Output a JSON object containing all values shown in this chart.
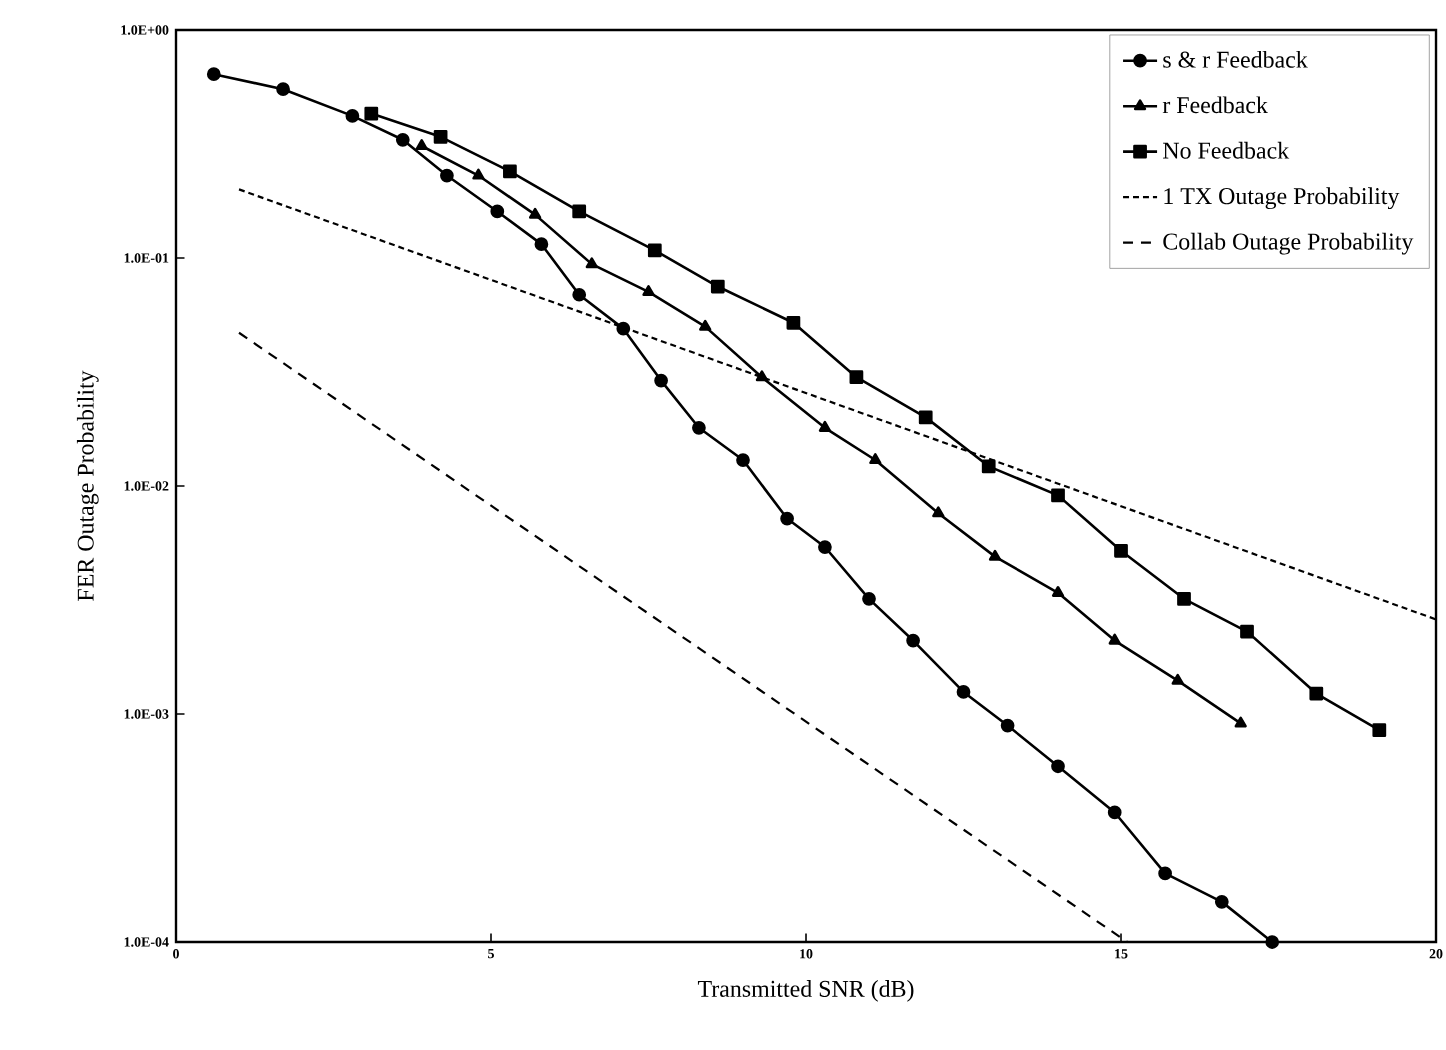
{
  "chart_data": {
    "type": "line",
    "xlabel": "Transmitted SNR (dB)",
    "ylabel": "FER  Outage Probability",
    "log": "y",
    "legend": "top right",
    "xlim": [
      0,
      20
    ],
    "xticks": [
      0,
      5,
      10,
      15,
      20
    ],
    "ylim": [
      0.0001,
      1
    ],
    "yticks": [
      {
        "value": 0.0001,
        "label": "1.0E-04"
      },
      {
        "value": 0.001,
        "label": "1.0E-03"
      },
      {
        "value": 0.01,
        "label": "1.0E-02"
      },
      {
        "value": 0.1,
        "label": "1.0E-01"
      },
      {
        "value": 1,
        "label": "1.0E+00"
      }
    ],
    "series": [
      {
        "name": "s & r Feedback",
        "color": "#000000",
        "marker": "circle",
        "line_style": "solid",
        "x": [
          0.6,
          1.7,
          2.8,
          3.6,
          4.3,
          5.1,
          5.8,
          6.4,
          7.1,
          7.7,
          8.3,
          9.0,
          9.7,
          10.3,
          11.0,
          11.7,
          12.5,
          13.2,
          14.0,
          14.9,
          15.7,
          16.6,
          17.4
        ],
        "values": [
          0.64,
          0.55,
          0.42,
          0.33,
          0.23,
          0.16,
          0.115,
          0.069,
          0.049,
          0.029,
          0.018,
          0.013,
          0.0072,
          0.0054,
          0.0032,
          0.0021,
          0.00125,
          0.00089,
          0.00059,
          0.00037,
          0.0002,
          0.00015,
          0.0001
        ]
      },
      {
        "name": "r Feedback",
        "color": "#000000",
        "marker": "triangle",
        "line_style": "solid",
        "x": [
          3.9,
          4.8,
          5.7,
          6.6,
          7.5,
          8.4,
          9.3,
          10.3,
          11.1,
          12.1,
          13.0,
          14.0,
          14.9,
          15.9,
          16.9
        ],
        "values": [
          0.31,
          0.23,
          0.155,
          0.094,
          0.071,
          0.05,
          0.03,
          0.018,
          0.013,
          0.0076,
          0.0049,
          0.0034,
          0.0021,
          0.0014,
          0.00091
        ]
      },
      {
        "name": "No Feedback",
        "color": "#000000",
        "marker": "square",
        "line_style": "solid",
        "x": [
          3.1,
          4.2,
          5.3,
          6.4,
          7.6,
          8.6,
          9.8,
          10.8,
          11.9,
          12.9,
          14.0,
          15.0,
          16.0,
          17.0,
          18.1,
          19.1
        ],
        "values": [
          0.43,
          0.34,
          0.24,
          0.16,
          0.108,
          0.075,
          0.052,
          0.03,
          0.02,
          0.0122,
          0.0091,
          0.0052,
          0.0032,
          0.0023,
          0.00123,
          0.00085
        ]
      },
      {
        "name": "1 TX Outage Probability",
        "color": "#000000",
        "marker": "none",
        "line_style": "dotted",
        "x": [
          1.0,
          20.0
        ],
        "values": [
          0.2,
          0.0026
        ]
      },
      {
        "name": "Collab Outage Probability",
        "color": "#000000",
        "marker": "none",
        "line_style": "dashed",
        "x": [
          1.0,
          15.1
        ],
        "values": [
          0.047,
          0.0001
        ]
      }
    ]
  }
}
